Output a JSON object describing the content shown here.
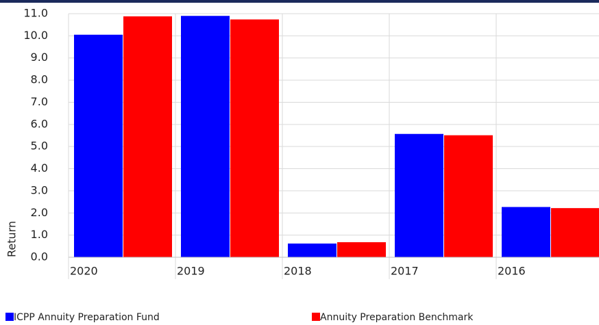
{
  "chart_data": {
    "type": "bar",
    "y_label": "Return",
    "categories": [
      "2020",
      "2019",
      "2018",
      "2017",
      "2016"
    ],
    "series": [
      {
        "name": "ICPP Annuity Preparation Fund",
        "color": "#0000ff",
        "values": [
          10.05,
          10.9,
          0.62,
          5.57,
          2.27
        ]
      },
      {
        "name": "Annuity Preparation Benchmark",
        "color": "#ff0000",
        "values": [
          10.88,
          10.74,
          0.68,
          5.51,
          2.22
        ]
      }
    ],
    "ylim": [
      0,
      11
    ],
    "yticks": [
      {
        "value": 0,
        "label": "0.0"
      },
      {
        "value": 1,
        "label": "1.0"
      },
      {
        "value": 2,
        "label": "2.0"
      },
      {
        "value": 3,
        "label": "3.0"
      },
      {
        "value": 4,
        "label": "4.0"
      },
      {
        "value": 5,
        "label": "5.0"
      },
      {
        "value": 6,
        "label": "6.0"
      },
      {
        "value": 7,
        "label": "7.0"
      },
      {
        "value": 8,
        "label": "8.0"
      },
      {
        "value": 9,
        "label": "9.0"
      },
      {
        "value": 10,
        "label": "10.0"
      },
      {
        "value": 11,
        "label": "11.0"
      }
    ],
    "grid": true
  }
}
